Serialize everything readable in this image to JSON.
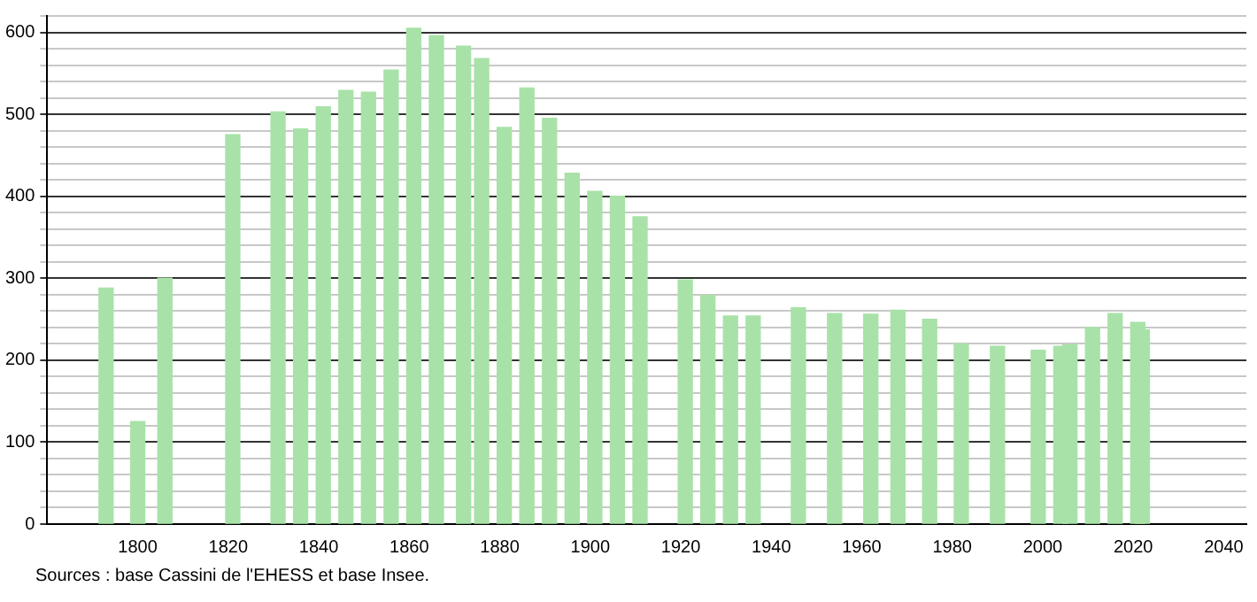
{
  "chart_data": {
    "type": "bar",
    "x": [
      1793,
      1800,
      1806,
      1821,
      1831,
      1836,
      1841,
      1846,
      1851,
      1856,
      1861,
      1866,
      1872,
      1876,
      1881,
      1886,
      1891,
      1896,
      1901,
      1906,
      1911,
      1921,
      1926,
      1931,
      1936,
      1946,
      1954,
      1962,
      1968,
      1975,
      1982,
      1990,
      1999,
      2004,
      2006,
      2011,
      2016,
      2021,
      2022
    ],
    "values": [
      288,
      125,
      300,
      475,
      503,
      482,
      509,
      529,
      527,
      554,
      605,
      596,
      583,
      568,
      484,
      532,
      495,
      428,
      406,
      400,
      375,
      298,
      279,
      254,
      254,
      264,
      257,
      256,
      261,
      250,
      220,
      217,
      212,
      217,
      219,
      240,
      257,
      246,
      237
    ],
    "color": "#a8e2a8",
    "xlim": [
      1780,
      2045
    ],
    "xticks": [
      1800,
      1820,
      1840,
      1860,
      1880,
      1900,
      1920,
      1940,
      1960,
      1980,
      2000,
      2020,
      2040
    ],
    "ylim": [
      0,
      620
    ],
    "yticks": [
      0,
      {
        "value": 20,
        "label": null
      },
      {
        "value": 40,
        "label": null
      },
      {
        "value": 60,
        "label": null
      },
      {
        "value": 80,
        "label": null
      },
      100,
      {
        "value": 120,
        "label": null
      },
      {
        "value": 140,
        "label": null
      },
      {
        "value": 160,
        "label": null
      },
      {
        "value": 180,
        "label": null
      },
      200,
      {
        "value": 220,
        "label": null
      },
      {
        "value": 240,
        "label": null
      },
      {
        "value": 260,
        "label": null
      },
      {
        "value": 280,
        "label": null
      },
      300,
      {
        "value": 320,
        "label": null
      },
      {
        "value": 340,
        "label": null
      },
      {
        "value": 360,
        "label": null
      },
      {
        "value": 380,
        "label": null
      },
      400,
      {
        "value": 420,
        "label": null
      },
      {
        "value": 440,
        "label": null
      },
      {
        "value": 460,
        "label": null
      },
      {
        "value": 480,
        "label": null
      },
      500,
      {
        "value": 520,
        "label": null
      },
      {
        "value": 540,
        "label": null
      },
      {
        "value": 560,
        "label": null
      },
      {
        "value": 580,
        "label": null
      },
      600,
      {
        "value": 620,
        "label": null
      }
    ],
    "grid": "y",
    "legend": false,
    "annotations": [
      "Sources : base Cassini de l'EHESS et base Insee."
    ]
  }
}
